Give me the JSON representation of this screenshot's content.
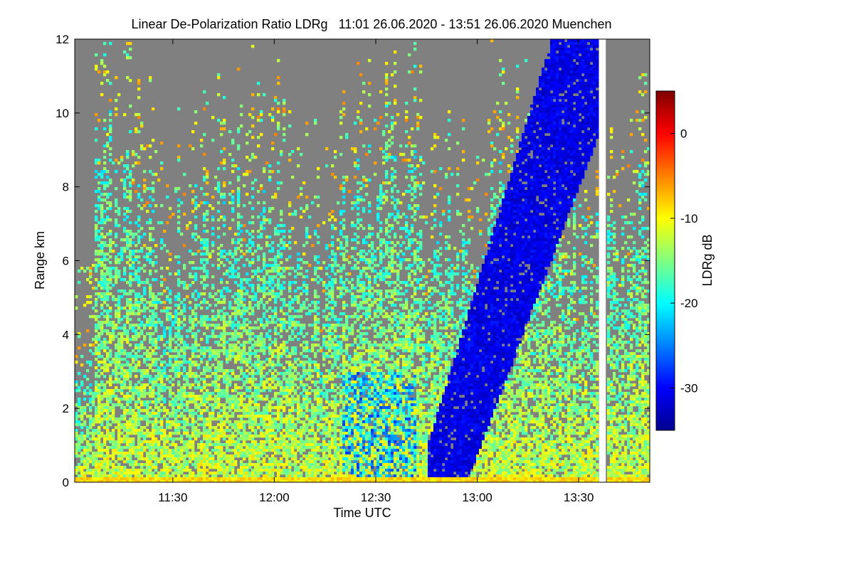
{
  "chart_data": {
    "type": "heatmap",
    "title": "Linear De-Polarization Ratio LDRg   11:01 26.06.2020 - 13:51 26.06.2020 Muenchen",
    "xlabel": "Time UTC",
    "ylabel": "Range km",
    "x_range": [
      "11:01",
      "13:51"
    ],
    "ylim": [
      0,
      12
    ],
    "x_ticks": [
      "11:30",
      "12:00",
      "12:30",
      "13:00",
      "13:30"
    ],
    "y_ticks": [
      "0",
      "2",
      "4",
      "6",
      "8",
      "10",
      "12"
    ],
    "colorbar": {
      "label": "LDRg dB",
      "range": [
        -35,
        5
      ],
      "ticks": [
        "0",
        "-10",
        "-20",
        "-30"
      ],
      "tick_values": [
        0,
        -10,
        -20,
        -30
      ],
      "colors": [
        "#00008f",
        "#0000ff",
        "#0080ff",
        "#00ffff",
        "#80ff80",
        "#ffff00",
        "#ff8000",
        "#ff0000",
        "#800000"
      ]
    },
    "no_signal_color": "#808080",
    "data_gap": [
      "13:36",
      "13:38"
    ],
    "features": [
      {
        "kind": "low depolarization (~-33 dB) precipitation band",
        "time_start": "12:45",
        "time_end": "13:35",
        "range_km": [
          0,
          12
        ]
      },
      {
        "kind": "low depolarization streaks",
        "time_start": "12:20",
        "time_end": "12:42",
        "range_km": [
          0,
          3
        ]
      },
      {
        "kind": "aerosol / ice layer (~-12 dB)",
        "time_start": "11:01",
        "time_end": "13:51",
        "range_km": [
          0,
          5
        ]
      }
    ]
  }
}
